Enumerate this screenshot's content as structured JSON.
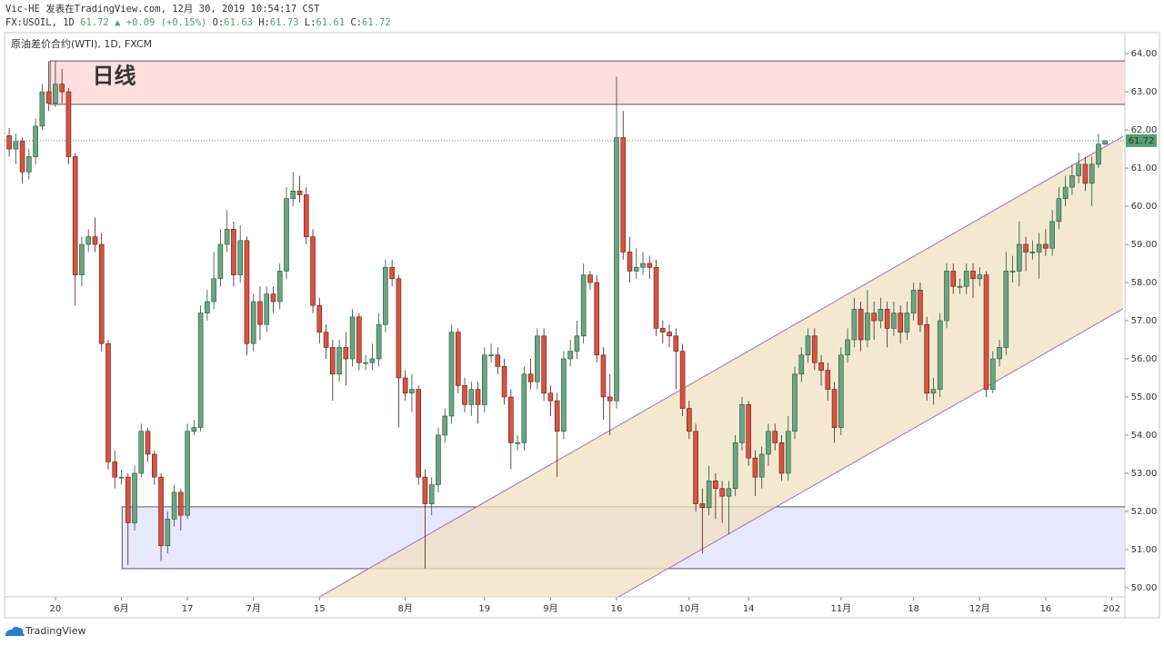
{
  "header": {
    "line1": "Vic-HE 发表在TradingView.com, 12月 30, 2019 10:54:17 CST",
    "symbol": "FX:USOIL, 1D",
    "price": "61.72",
    "change": "▲ +0.09 (+0.15%)",
    "ohlc": [
      {
        "key": "O:",
        "value": "61.63"
      },
      {
        "key": "H:",
        "value": "61.73"
      },
      {
        "key": "L:",
        "value": "61.61"
      },
      {
        "key": "C:",
        "value": "61.72"
      }
    ]
  },
  "footer": {
    "brand": "TradingView"
  },
  "chart_data": {
    "type": "candlestick",
    "title": "原油差价合约(WTI), 1D, FXCM",
    "up_color": "#6ba583",
    "down_color": "#d75442",
    "up_border": "#225437",
    "down_border": "#5b1a13",
    "xlim": [
      -0.7,
      169
    ],
    "ylim": [
      49.76,
      64.55
    ],
    "xticks": [
      {
        "value": 7,
        "label": "20"
      },
      {
        "value": 17,
        "label": "6月"
      },
      {
        "value": 27,
        "label": "17"
      },
      {
        "value": 37,
        "label": "7月"
      },
      {
        "value": 47,
        "label": "15"
      },
      {
        "value": 60,
        "label": "8月"
      },
      {
        "value": 72,
        "label": "19"
      },
      {
        "value": 82,
        "label": "9月"
      },
      {
        "value": 92,
        "label": "16"
      },
      {
        "value": 103,
        "label": "10月"
      },
      {
        "value": 112,
        "label": "14"
      },
      {
        "value": 126,
        "label": "11月"
      },
      {
        "value": 137,
        "label": "18"
      },
      {
        "value": 147,
        "label": "12月"
      },
      {
        "value": 157,
        "label": "16"
      },
      {
        "value": 167,
        "label": "202"
      }
    ],
    "yticks": [
      {
        "value": 50,
        "label": "50.00"
      },
      {
        "value": 51,
        "label": "51.00"
      },
      {
        "value": 52,
        "label": "52.00"
      },
      {
        "value": 53,
        "label": "53.00"
      },
      {
        "value": 54,
        "label": "54.00"
      },
      {
        "value": 55,
        "label": "55.00"
      },
      {
        "value": 56,
        "label": "56.00"
      },
      {
        "value": 57,
        "label": "57.00"
      },
      {
        "value": 58,
        "label": "58.00"
      },
      {
        "value": 59,
        "label": "59.00"
      },
      {
        "value": 60,
        "label": "60.00"
      },
      {
        "value": 61,
        "label": "61.00"
      },
      {
        "value": 62,
        "label": "62.00"
      },
      {
        "value": 63,
        "label": "63.00"
      },
      {
        "value": 64,
        "label": "64.00"
      }
    ],
    "open": [
      61.85,
      61.5,
      61.7,
      60.9,
      61.3,
      62.1,
      63.0,
      62.7,
      63.2,
      63.0,
      61.3,
      58.2,
      59.0,
      59.2,
      59.0,
      56.4,
      53.3,
      52.9,
      52.9,
      51.7,
      53.0,
      54.1,
      53.5,
      52.9,
      51.1,
      51.8,
      52.5,
      51.9,
      54.1,
      54.2,
      57.2,
      57.5,
      58.1,
      59.0,
      59.4,
      58.2,
      59.1,
      56.4,
      57.5,
      56.9,
      57.7,
      57.5,
      58.3,
      60.2,
      60.4,
      60.3,
      59.2,
      57.4,
      56.7,
      56.3,
      55.6,
      56.3,
      56.0,
      57.1,
      55.9,
      55.9,
      56.0,
      56.9,
      58.4,
      58.1,
      55.5,
      55.1,
      55.2,
      52.9,
      52.2,
      52.7,
      54.0,
      54.5,
      56.7,
      55.3,
      54.8,
      55.2,
      54.8,
      56.1,
      56.1,
      55.8,
      55.0,
      53.8,
      53.8,
      55.6,
      55.4,
      56.6,
      55.1,
      54.9,
      54.1,
      56.0,
      56.2,
      56.6,
      58.2,
      58.0,
      56.1,
      55.0,
      54.9,
      61.8,
      58.8,
      58.3,
      58.4,
      58.5,
      58.4,
      56.8,
      56.7,
      56.6,
      56.2,
      54.7,
      54.1,
      52.2,
      52.1,
      52.8,
      52.6,
      52.4,
      52.6,
      53.8,
      54.8,
      53.4,
      52.9,
      53.5,
      54.1,
      53.8,
      53.0,
      54.1,
      55.6,
      56.1,
      56.6,
      55.9,
      55.7,
      55.2,
      54.2,
      56.1,
      56.5,
      57.3,
      56.5,
      57.2,
      57.0,
      57.3,
      56.8,
      57.2,
      56.7,
      57.2,
      57.8,
      56.9,
      55.1,
      55.2,
      57.0,
      58.3,
      57.9,
      57.9,
      58.3,
      58.1,
      58.2,
      55.2,
      56.0,
      56.3,
      58.3,
      58.3,
      59.0,
      58.8,
      58.8,
      59.0,
      58.9,
      59.6,
      60.2,
      60.5,
      60.8,
      61.1,
      60.6,
      61.1,
      61.63
    ],
    "high": [
      62.05,
      61.9,
      61.8,
      61.5,
      62.3,
      63.2,
      63.8,
      63.8,
      63.6,
      63.1,
      61.4,
      59.2,
      59.4,
      59.7,
      59.3,
      56.5,
      53.6,
      53.1,
      53.0,
      53.2,
      54.3,
      54.2,
      53.6,
      53.0,
      52.0,
      52.7,
      52.6,
      54.3,
      54.4,
      57.4,
      57.8,
      58.8,
      59.4,
      59.9,
      59.6,
      59.5,
      59.2,
      57.7,
      57.9,
      57.9,
      57.9,
      58.5,
      60.5,
      60.9,
      60.8,
      60.5,
      59.4,
      57.6,
      56.9,
      56.5,
      56.5,
      56.7,
      57.3,
      57.2,
      56.1,
      56.4,
      57.2,
      58.6,
      58.6,
      58.2,
      55.7,
      55.6,
      55.3,
      53.1,
      52.9,
      54.2,
      54.7,
      56.9,
      56.8,
      55.5,
      55.4,
      55.4,
      56.3,
      56.4,
      56.3,
      56.0,
      55.2,
      54.0,
      55.8,
      56.0,
      56.8,
      56.8,
      55.3,
      55.1,
      56.2,
      56.5,
      57.0,
      58.5,
      58.3,
      58.2,
      56.3,
      55.6,
      63.4,
      62.5,
      59.2,
      58.9,
      58.8,
      58.7,
      58.6,
      57.0,
      56.9,
      56.8,
      56.4,
      54.9,
      54.3,
      52.6,
      53.2,
      53.0,
      52.8,
      52.8,
      54.0,
      55.0,
      54.9,
      53.6,
      53.7,
      54.3,
      54.3,
      54.0,
      54.5,
      55.8,
      56.3,
      56.8,
      56.8,
      56.1,
      55.9,
      55.4,
      56.3,
      56.8,
      57.6,
      57.5,
      57.8,
      57.5,
      57.6,
      57.5,
      57.5,
      57.4,
      57.5,
      58.0,
      58.0,
      57.1,
      55.5,
      57.2,
      58.5,
      58.5,
      58.1,
      58.5,
      58.5,
      58.4,
      58.3,
      56.2,
      56.5,
      58.8,
      58.7,
      59.6,
      59.2,
      59.1,
      59.3,
      59.4,
      59.9,
      60.5,
      60.8,
      61.1,
      61.4,
      61.3,
      61.3,
      61.9,
      61.73
    ],
    "low": [
      61.3,
      61.1,
      60.6,
      60.7,
      61.1,
      62.0,
      62.5,
      62.6,
      62.7,
      61.1,
      57.4,
      57.9,
      58.8,
      58.8,
      56.2,
      53.1,
      52.6,
      52.7,
      50.6,
      51.5,
      52.9,
      53.3,
      52.7,
      50.7,
      50.9,
      51.6,
      51.5,
      51.8,
      54.0,
      54.1,
      57.0,
      57.3,
      57.9,
      58.8,
      57.9,
      58.0,
      56.1,
      56.2,
      56.5,
      56.7,
      57.2,
      57.3,
      58.1,
      60.0,
      60.1,
      59.0,
      57.2,
      56.4,
      56.0,
      54.9,
      55.4,
      55.3,
      55.8,
      55.7,
      55.7,
      55.7,
      55.8,
      56.7,
      57.9,
      54.2,
      54.9,
      54.6,
      52.7,
      50.5,
      51.9,
      52.5,
      53.8,
      54.3,
      55.1,
      54.6,
      54.5,
      54.3,
      54.6,
      55.9,
      55.6,
      54.8,
      53.1,
      53.6,
      53.6,
      55.2,
      55.2,
      54.9,
      54.5,
      52.9,
      53.9,
      55.8,
      56.0,
      56.4,
      57.8,
      55.9,
      54.4,
      54.0,
      54.7,
      58.6,
      58.0,
      58.1,
      58.2,
      58.1,
      56.6,
      56.4,
      56.3,
      55.2,
      54.5,
      53.9,
      52.0,
      50.9,
      51.9,
      51.8,
      51.7,
      51.4,
      52.4,
      53.6,
      53.2,
      52.4,
      52.6,
      53.2,
      53.6,
      52.8,
      52.8,
      53.9,
      55.4,
      55.9,
      55.7,
      55.3,
      54.9,
      53.8,
      54.0,
      55.9,
      56.3,
      56.2,
      56.3,
      56.5,
      56.8,
      56.3,
      56.6,
      56.4,
      56.5,
      57.0,
      56.7,
      54.9,
      54.8,
      55.0,
      56.8,
      57.7,
      57.7,
      57.7,
      57.6,
      57.9,
      55.0,
      55.1,
      55.8,
      56.1,
      58.0,
      57.9,
      58.3,
      58.6,
      58.1,
      58.7,
      58.7,
      59.4,
      60.0,
      60.3,
      60.6,
      60.4,
      60.0,
      61.0,
      61.61
    ],
    "close": [
      61.5,
      61.7,
      60.9,
      61.3,
      62.1,
      63.0,
      62.7,
      63.2,
      63.0,
      61.3,
      58.2,
      59.0,
      59.2,
      59.0,
      56.4,
      53.3,
      52.9,
      52.9,
      51.7,
      53.0,
      54.1,
      53.5,
      52.9,
      51.1,
      51.8,
      52.5,
      51.9,
      54.1,
      54.2,
      57.2,
      57.5,
      58.1,
      59.0,
      59.4,
      58.2,
      59.1,
      56.4,
      57.5,
      56.9,
      57.7,
      57.5,
      58.3,
      60.2,
      60.4,
      60.3,
      59.2,
      57.4,
      56.7,
      56.3,
      55.6,
      56.3,
      56.0,
      57.1,
      55.9,
      55.9,
      56.0,
      56.9,
      58.4,
      58.1,
      55.5,
      55.1,
      55.2,
      52.9,
      52.2,
      52.7,
      54.0,
      54.5,
      56.7,
      55.3,
      54.8,
      55.2,
      54.8,
      56.1,
      56.1,
      55.8,
      55.0,
      53.8,
      53.8,
      55.6,
      55.4,
      56.6,
      55.1,
      54.9,
      54.1,
      56.0,
      56.2,
      56.6,
      58.2,
      58.0,
      56.1,
      55.0,
      54.9,
      61.8,
      58.8,
      58.3,
      58.4,
      58.5,
      58.4,
      56.8,
      56.7,
      56.6,
      56.2,
      54.7,
      54.1,
      52.2,
      52.1,
      52.8,
      52.6,
      52.4,
      52.6,
      53.8,
      54.8,
      53.4,
      52.9,
      53.5,
      54.1,
      53.8,
      53.0,
      54.1,
      55.6,
      56.1,
      56.6,
      55.9,
      55.7,
      55.2,
      54.2,
      56.1,
      56.5,
      57.3,
      56.5,
      57.2,
      57.0,
      57.3,
      56.8,
      57.2,
      56.7,
      57.2,
      57.8,
      56.9,
      55.1,
      55.2,
      57.0,
      58.3,
      57.9,
      57.9,
      58.3,
      58.1,
      58.2,
      55.2,
      56.0,
      56.3,
      58.3,
      58.3,
      59.0,
      58.8,
      58.8,
      59.0,
      58.9,
      59.6,
      60.2,
      60.5,
      60.8,
      61.1,
      60.6,
      61.1,
      61.63,
      61.72
    ],
    "zones": [
      {
        "start": 6.2,
        "ylim": [
          62.67,
          63.81
        ],
        "color": "#ffd6d6"
      },
      {
        "start": 17.1,
        "ylim": [
          50.5,
          52.12
        ],
        "color": "#e2e2fb"
      }
    ],
    "channel": {
      "color": "#a070b8",
      "fill": "#efe2c2",
      "upper": [
        [
          47,
          49.76
        ],
        [
          168.7,
          61.83
        ]
      ],
      "lower": [
        [
          92.3,
          49.76
        ],
        [
          168.7,
          57.31
        ]
      ]
    },
    "annotations": [
      {
        "text": "日线",
        "x": 12.6,
        "y": 63.4
      }
    ],
    "last_price_color": "#53a06f"
  }
}
